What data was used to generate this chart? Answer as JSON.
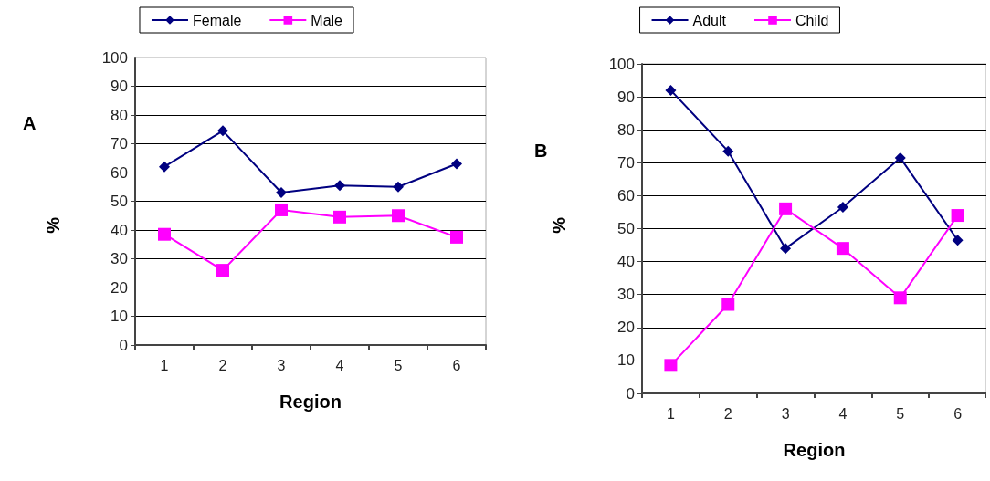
{
  "chart_data": [
    {
      "type": "line",
      "title": "A",
      "xlabel": "Region",
      "ylabel": "%",
      "categories": [
        "1",
        "2",
        "3",
        "4",
        "5",
        "6"
      ],
      "series": [
        {
          "name": "Female",
          "color": "#000080",
          "marker": "diamond",
          "values": [
            62,
            74.5,
            53,
            55.5,
            55,
            63
          ]
        },
        {
          "name": "Male",
          "color": "#ff00ff",
          "marker": "square",
          "values": [
            38.5,
            26,
            47,
            44.5,
            45,
            37.5
          ]
        }
      ],
      "ylim": [
        0,
        100
      ],
      "yticks": [
        0,
        10,
        20,
        30,
        40,
        50,
        60,
        70,
        80,
        90,
        100
      ],
      "grid": "y",
      "legend": "top"
    },
    {
      "type": "line",
      "title": "B",
      "xlabel": "Region",
      "ylabel": "%",
      "categories": [
        "1",
        "2",
        "3",
        "4",
        "5",
        "6"
      ],
      "series": [
        {
          "name": "Adult",
          "color": "#000080",
          "marker": "diamond",
          "values": [
            92,
            73.5,
            44,
            56.5,
            71.5,
            46.5
          ]
        },
        {
          "name": "Child",
          "color": "#ff00ff",
          "marker": "square",
          "values": [
            8.5,
            27,
            56,
            44,
            29,
            54
          ]
        }
      ],
      "ylim": [
        0,
        100
      ],
      "yticks": [
        0,
        10,
        20,
        30,
        40,
        50,
        60,
        70,
        80,
        90,
        100
      ],
      "grid": "y",
      "legend": "top"
    }
  ]
}
